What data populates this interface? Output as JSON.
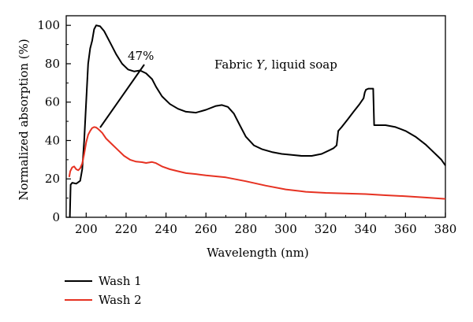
{
  "chart_data": {
    "type": "line",
    "xlabel": "Wavelength (nm)",
    "ylabel": "Normalized absorption (%)",
    "xlim": [
      190,
      380
    ],
    "ylim": [
      0,
      105
    ],
    "x_ticks": [
      "200",
      "220",
      "240",
      "260",
      "280",
      "300",
      "320",
      "340",
      "360",
      "380"
    ],
    "y_ticks": [
      "0",
      "20",
      "40",
      "60",
      "80",
      "100"
    ],
    "grid": false,
    "legend_position": "bottom-left",
    "annotation_title_prefix": "Fabric ",
    "annotation_title_italic": "Y",
    "annotation_title_suffix": ", liquid soap",
    "annotation_percent": "47%",
    "series": [
      {
        "name": "Wash 1",
        "color": "#000000",
        "points": [
          [
            191.8,
            0
          ],
          [
            192.2,
            17
          ],
          [
            193,
            18
          ],
          [
            195,
            17.5
          ],
          [
            197,
            19
          ],
          [
            198,
            25
          ],
          [
            199,
            40
          ],
          [
            200,
            60
          ],
          [
            201,
            80
          ],
          [
            202,
            88
          ],
          [
            203,
            92
          ],
          [
            204,
            98
          ],
          [
            205,
            100
          ],
          [
            207,
            99.5
          ],
          [
            209,
            97
          ],
          [
            212,
            91
          ],
          [
            215,
            85
          ],
          [
            218,
            80
          ],
          [
            221,
            77
          ],
          [
            224,
            76
          ],
          [
            227,
            76.5
          ],
          [
            230,
            75
          ],
          [
            233,
            72
          ],
          [
            235,
            68
          ],
          [
            238,
            63
          ],
          [
            242,
            59
          ],
          [
            246,
            56.5
          ],
          [
            250,
            55
          ],
          [
            255,
            54.5
          ],
          [
            260,
            56
          ],
          [
            265,
            58
          ],
          [
            268,
            58.5
          ],
          [
            271,
            57.5
          ],
          [
            274,
            54
          ],
          [
            277,
            48
          ],
          [
            280,
            42
          ],
          [
            284,
            37.5
          ],
          [
            288,
            35.5
          ],
          [
            293,
            34
          ],
          [
            298,
            33
          ],
          [
            303,
            32.5
          ],
          [
            308,
            32
          ],
          [
            313,
            32
          ],
          [
            318,
            33
          ],
          [
            322,
            35
          ],
          [
            324,
            36
          ],
          [
            325.5,
            37.5
          ],
          [
            326.3,
            45
          ],
          [
            328,
            47
          ],
          [
            331,
            51
          ],
          [
            334,
            55
          ],
          [
            337,
            59
          ],
          [
            339,
            62
          ],
          [
            339.6,
            65
          ],
          [
            340.2,
            66.5
          ],
          [
            341.5,
            67
          ],
          [
            343.8,
            67
          ],
          [
            344.3,
            48
          ],
          [
            346,
            48
          ],
          [
            350,
            48
          ],
          [
            355,
            47
          ],
          [
            360,
            45
          ],
          [
            365,
            42
          ],
          [
            370,
            38
          ],
          [
            373,
            35
          ],
          [
            376,
            32
          ],
          [
            378,
            30
          ],
          [
            380,
            27
          ]
        ]
      },
      {
        "name": "Wash 2",
        "color": "#e63222",
        "points": [
          [
            191.5,
            21
          ],
          [
            192,
            24
          ],
          [
            193,
            26
          ],
          [
            194,
            26.5
          ],
          [
            195,
            25
          ],
          [
            196,
            24.5
          ],
          [
            197,
            25.5
          ],
          [
            198,
            28
          ],
          [
            199,
            33
          ],
          [
            200,
            39
          ],
          [
            201,
            43
          ],
          [
            202,
            45
          ],
          [
            203,
            46.5
          ],
          [
            204,
            47
          ],
          [
            205,
            46.8
          ],
          [
            206,
            46
          ],
          [
            208,
            44
          ],
          [
            210,
            41
          ],
          [
            213,
            38
          ],
          [
            216,
            35
          ],
          [
            219,
            32
          ],
          [
            222,
            30
          ],
          [
            225,
            29
          ],
          [
            228,
            28.7
          ],
          [
            230,
            28.3
          ],
          [
            233,
            28.8
          ],
          [
            235,
            28.2
          ],
          [
            238,
            26.5
          ],
          [
            242,
            25
          ],
          [
            246,
            24
          ],
          [
            250,
            23
          ],
          [
            255,
            22.5
          ],
          [
            260,
            21.8
          ],
          [
            270,
            20.8
          ],
          [
            280,
            18.8
          ],
          [
            290,
            16.5
          ],
          [
            300,
            14.5
          ],
          [
            310,
            13.3
          ],
          [
            320,
            12.7
          ],
          [
            330,
            12.4
          ],
          [
            340,
            12.1
          ],
          [
            350,
            11.5
          ],
          [
            360,
            11
          ],
          [
            370,
            10.3
          ],
          [
            380,
            9.6
          ]
        ]
      }
    ]
  }
}
